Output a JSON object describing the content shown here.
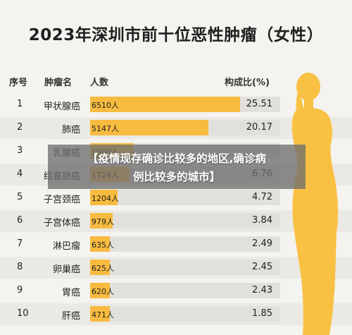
{
  "title": "2023年深圳市前十位恶性肿瘤（女性）",
  "overlay": {
    "line1": "【疫情现存确诊比较多的地区,确诊病",
    "line2": "例比较多的城市】"
  },
  "colors": {
    "bar": "#f7bb3f",
    "track": "#e2e0da",
    "silhouette": "#f9c144",
    "background": "#f4f3ef"
  },
  "chart_data": {
    "type": "bar",
    "title": "2023年深圳市前十位恶性肿瘤（女性）",
    "columns": [
      "序号",
      "肿瘤名",
      "人数",
      "构成比(%)"
    ],
    "value_suffix": "人",
    "xlim": [
      0,
      8250
    ],
    "rows": [
      {
        "rank": "1",
        "name": "甲状腺癌",
        "count": 6510,
        "ratio": "25.51"
      },
      {
        "rank": "2",
        "name": "肺癌",
        "count": 5147,
        "ratio": "20.17"
      },
      {
        "rank": "3",
        "name": "乳腺癌",
        "count": 1900,
        "ratio": ""
      },
      {
        "rank": "4",
        "name": "结直肠癌",
        "count": 1724,
        "ratio": "6.76"
      },
      {
        "rank": "5",
        "name": "子宫颈癌",
        "count": 1204,
        "ratio": "4.72"
      },
      {
        "rank": "6",
        "name": "子宫体癌",
        "count": 979,
        "ratio": "3.84"
      },
      {
        "rank": "7",
        "name": "淋巴瘤",
        "count": 635,
        "ratio": "2.49"
      },
      {
        "rank": "8",
        "name": "卵巢癌",
        "count": 625,
        "ratio": "2.45"
      },
      {
        "rank": "9",
        "name": "胃癌",
        "count": 620,
        "ratio": "2.43"
      },
      {
        "rank": "10",
        "name": "肝癌",
        "count": 471,
        "ratio": "1.85"
      }
    ]
  }
}
